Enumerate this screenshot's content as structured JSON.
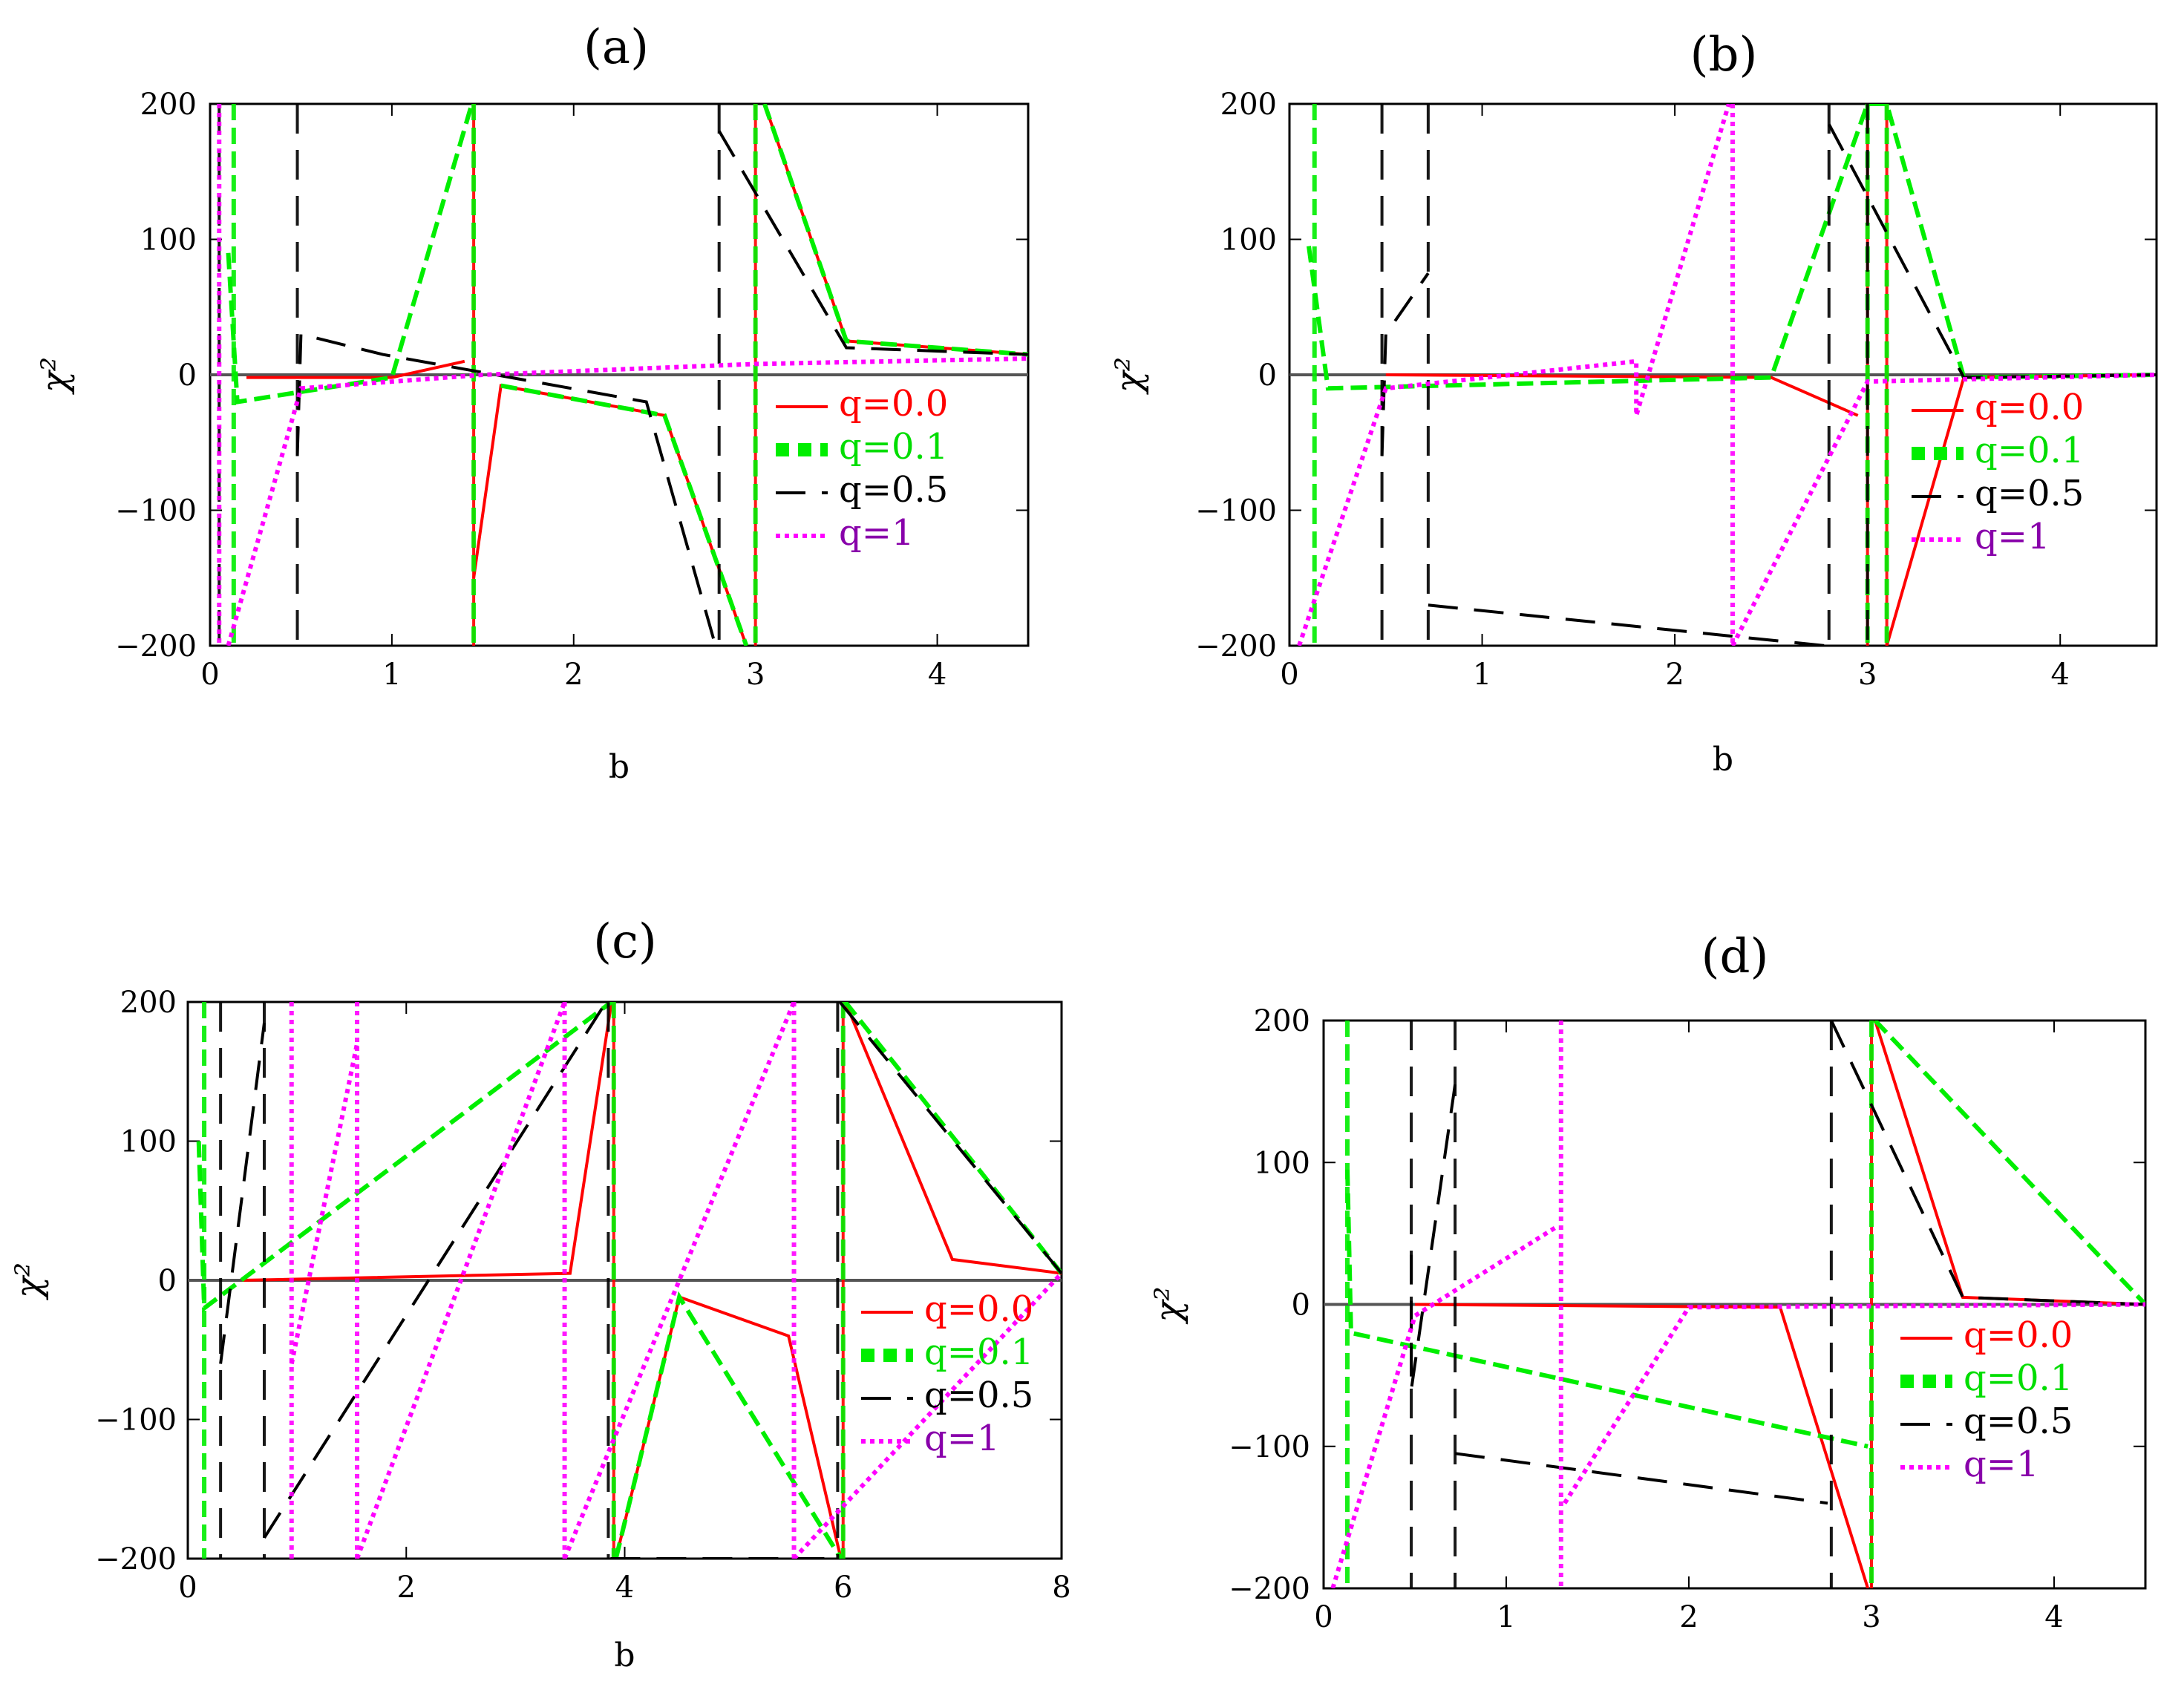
{
  "figure": {
    "legend_entries": [
      "q=0.0",
      "q=0.1",
      "q=0.5",
      "q=1"
    ],
    "series_styles": [
      {
        "name": "q=0.0",
        "color": "#ff0000",
        "dash": "solid",
        "text_color": "#ff0000"
      },
      {
        "name": "q=0.1",
        "color": "#00ee00",
        "dash": "dashed",
        "text_color": "#00dd00"
      },
      {
        "name": "q=0.5",
        "color": "#000000",
        "dash": "long-dashed",
        "text_color": "#000000"
      },
      {
        "name": "q=1",
        "color": "#ff00ff",
        "dash": "dotted",
        "text_color": "#8800aa"
      }
    ]
  },
  "chart_data": [
    {
      "panel": "(a)",
      "type": "line",
      "title": "(a)",
      "xlabel": "b",
      "ylabel": "χ²",
      "xlim": [
        0,
        4.5
      ],
      "ylim": [
        -200,
        200
      ],
      "xticks": [
        "0",
        "1",
        "2",
        "3",
        "4"
      ],
      "yticks": [
        "200",
        "100",
        "0",
        "−100",
        "−200"
      ],
      "legend": [
        "q=0.0",
        "q=0.1",
        "q=0.5",
        "q=1"
      ],
      "series": [
        {
          "name": "q=0.0",
          "poles": [
            1.45,
            3.0
          ],
          "approx_points": [
            [
              0.2,
              -2
            ],
            [
              1.0,
              -2
            ],
            [
              1.4,
              10
            ],
            [
              1.45,
              -150
            ],
            [
              1.6,
              -8
            ],
            [
              2.5,
              -30
            ],
            [
              2.95,
              -200
            ],
            [
              3.05,
              200
            ],
            [
              3.5,
              25
            ],
            [
              4.5,
              15
            ]
          ]
        },
        {
          "name": "q=0.1",
          "poles": [
            0.13,
            1.45,
            3.0
          ],
          "approx_points": [
            [
              0.1,
              90
            ],
            [
              0.15,
              -20
            ],
            [
              1.0,
              -2
            ],
            [
              1.44,
              200
            ],
            [
              1.6,
              -8
            ],
            [
              2.5,
              -30
            ],
            [
              2.95,
              -200
            ],
            [
              3.05,
              200
            ],
            [
              3.5,
              25
            ],
            [
              4.5,
              15
            ]
          ]
        },
        {
          "name": "q=0.5",
          "poles": [
            0.05,
            0.48,
            2.8
          ],
          "approx_points": [
            [
              0.5,
              30
            ],
            [
              0.48,
              -60
            ],
            [
              0.95,
              15
            ],
            [
              2.4,
              -20
            ],
            [
              2.78,
              -200
            ],
            [
              2.8,
              180
            ],
            [
              3.5,
              20
            ],
            [
              4.5,
              15
            ]
          ]
        },
        {
          "name": "q=1",
          "poles": [
            0.05
          ],
          "approx_points": [
            [
              0.1,
              -200
            ],
            [
              0.5,
              -10
            ],
            [
              1.5,
              0
            ],
            [
              3.0,
              8
            ],
            [
              4.5,
              12
            ]
          ]
        }
      ]
    },
    {
      "panel": "(b)",
      "type": "line",
      "title": "(b)",
      "xlabel": "b",
      "ylabel": "χ²",
      "xlim": [
        0,
        4.5
      ],
      "ylim": [
        -200,
        200
      ],
      "xticks": [
        "0",
        "1",
        "2",
        "3",
        "4"
      ],
      "yticks": [
        "200",
        "100",
        "0",
        "−100",
        "−200"
      ],
      "legend": [
        "q=0.0",
        "q=0.1",
        "q=0.5",
        "q=1"
      ],
      "series": [
        {
          "name": "q=0.0",
          "poles": [
            3.0,
            3.1
          ],
          "approx_points": [
            [
              0.5,
              0
            ],
            [
              2.5,
              -2
            ],
            [
              2.95,
              -30
            ],
            [
              3.0,
              -200
            ],
            [
              3.05,
              100
            ],
            [
              3.1,
              -200
            ],
            [
              3.5,
              -2
            ],
            [
              4.5,
              0
            ]
          ]
        },
        {
          "name": "q=0.1",
          "poles": [
            0.13,
            3.0,
            3.1
          ],
          "approx_points": [
            [
              0.1,
              95
            ],
            [
              0.2,
              -10
            ],
            [
              2.5,
              -2
            ],
            [
              3.0,
              200
            ],
            [
              3.1,
              200
            ],
            [
              3.5,
              -2
            ],
            [
              4.5,
              0
            ]
          ]
        },
        {
          "name": "q=0.5",
          "poles": [
            0.48,
            0.72,
            2.8,
            3.0
          ],
          "approx_points": [
            [
              0.5,
              30
            ],
            [
              0.48,
              -60
            ],
            [
              0.72,
              75
            ],
            [
              0.72,
              -170
            ],
            [
              2.78,
              -200
            ],
            [
              2.8,
              185
            ],
            [
              3.5,
              -2
            ],
            [
              4.5,
              0
            ]
          ]
        },
        {
          "name": "q=1",
          "poles": [
            2.3
          ],
          "approx_points": [
            [
              0.05,
              -200
            ],
            [
              0.5,
              -10
            ],
            [
              1.8,
              10
            ],
            [
              1.8,
              -30
            ],
            [
              2.28,
              200
            ],
            [
              2.3,
              -200
            ],
            [
              3.0,
              -5
            ],
            [
              4.5,
              0
            ]
          ]
        }
      ]
    },
    {
      "panel": "(c)",
      "type": "line",
      "title": "(c)",
      "xlabel": "b",
      "ylabel": "χ²",
      "xlim": [
        0,
        8
      ],
      "ylim": [
        -200,
        200
      ],
      "xticks": [
        "0",
        "2",
        "4",
        "6",
        "8"
      ],
      "yticks": [
        "200",
        "100",
        "0",
        "−100",
        "−200"
      ],
      "legend": [
        "q=0.0",
        "q=0.1",
        "q=0.5",
        "q=1"
      ],
      "series": [
        {
          "name": "q=0.0",
          "poles": [
            3.9,
            6.0
          ],
          "approx_points": [
            [
              0.5,
              0
            ],
            [
              3.5,
              5
            ],
            [
              3.88,
              200
            ],
            [
              3.92,
              -200
            ],
            [
              4.5,
              -12
            ],
            [
              5.5,
              -40
            ],
            [
              5.98,
              -200
            ],
            [
              6.02,
              200
            ],
            [
              7,
              15
            ],
            [
              8,
              5
            ]
          ]
        },
        {
          "name": "q=0.1",
          "poles": [
            0.15,
            3.9,
            6.0
          ],
          "approx_points": [
            [
              0.1,
              100
            ],
            [
              0.15,
              -20
            ],
            [
              3.88,
              200
            ],
            [
              3.92,
              -200
            ],
            [
              4.5,
              -12
            ],
            [
              5.98,
              -200
            ],
            [
              6.02,
              200
            ],
            [
              8,
              5
            ]
          ]
        },
        {
          "name": "q=0.5",
          "poles": [
            0.3,
            0.7,
            3.85,
            5.95
          ],
          "approx_points": [
            [
              0.3,
              -60
            ],
            [
              0.7,
              185
            ],
            [
              0.7,
              -185
            ],
            [
              3.83,
              200
            ],
            [
              3.87,
              -200
            ],
            [
              5.93,
              -200
            ],
            [
              5.97,
              200
            ],
            [
              8,
              5
            ]
          ]
        },
        {
          "name": "q=1",
          "poles": [
            0.95,
            1.55,
            3.45,
            5.55
          ],
          "approx_points": [
            [
              0.95,
              200
            ],
            [
              0.95,
              -60
            ],
            [
              1.55,
              170
            ],
            [
              1.55,
              -200
            ],
            [
              3.45,
              200
            ],
            [
              3.45,
              -200
            ],
            [
              5.55,
              200
            ],
            [
              5.55,
              -200
            ],
            [
              8,
              5
            ]
          ]
        }
      ]
    },
    {
      "panel": "(d)",
      "type": "line",
      "title": "(d)",
      "xlabel": "",
      "ylabel": "χ²",
      "xlim": [
        0,
        4.5
      ],
      "ylim": [
        -200,
        200
      ],
      "xticks": [
        "0",
        "1",
        "2",
        "3",
        "4"
      ],
      "yticks": [
        "200",
        "100",
        "0",
        "−100",
        "−200"
      ],
      "legend": [
        "q=0.0",
        "q=0.1",
        "q=0.5",
        "q=1"
      ],
      "series": [
        {
          "name": "q=0.0",
          "poles": [
            3.0
          ],
          "approx_points": [
            [
              0.5,
              0
            ],
            [
              2.5,
              -2
            ],
            [
              2.98,
              -200
            ],
            [
              3.02,
              200
            ],
            [
              3.5,
              5
            ],
            [
              4.5,
              0
            ]
          ]
        },
        {
          "name": "q=0.1",
          "poles": [
            0.13,
            3.0
          ],
          "approx_points": [
            [
              0.13,
              95
            ],
            [
              0.15,
              -20
            ],
            [
              2.98,
              -100
            ],
            [
              3.02,
              200
            ],
            [
              4.5,
              0
            ]
          ]
        },
        {
          "name": "q=0.5",
          "poles": [
            0.48,
            0.72,
            2.78
          ],
          "approx_points": [
            [
              0.48,
              35
            ],
            [
              0.48,
              -60
            ],
            [
              0.72,
              155
            ],
            [
              0.72,
              -105
            ],
            [
              2.76,
              -140
            ],
            [
              2.78,
              200
            ],
            [
              3.5,
              5
            ],
            [
              4.5,
              0
            ]
          ]
        },
        {
          "name": "q=1",
          "poles": [
            1.3
          ],
          "approx_points": [
            [
              0.05,
              -200
            ],
            [
              0.5,
              -8
            ],
            [
              1.28,
              55
            ],
            [
              1.32,
              -140
            ],
            [
              2.0,
              -2
            ],
            [
              4.5,
              0
            ]
          ]
        }
      ]
    }
  ]
}
